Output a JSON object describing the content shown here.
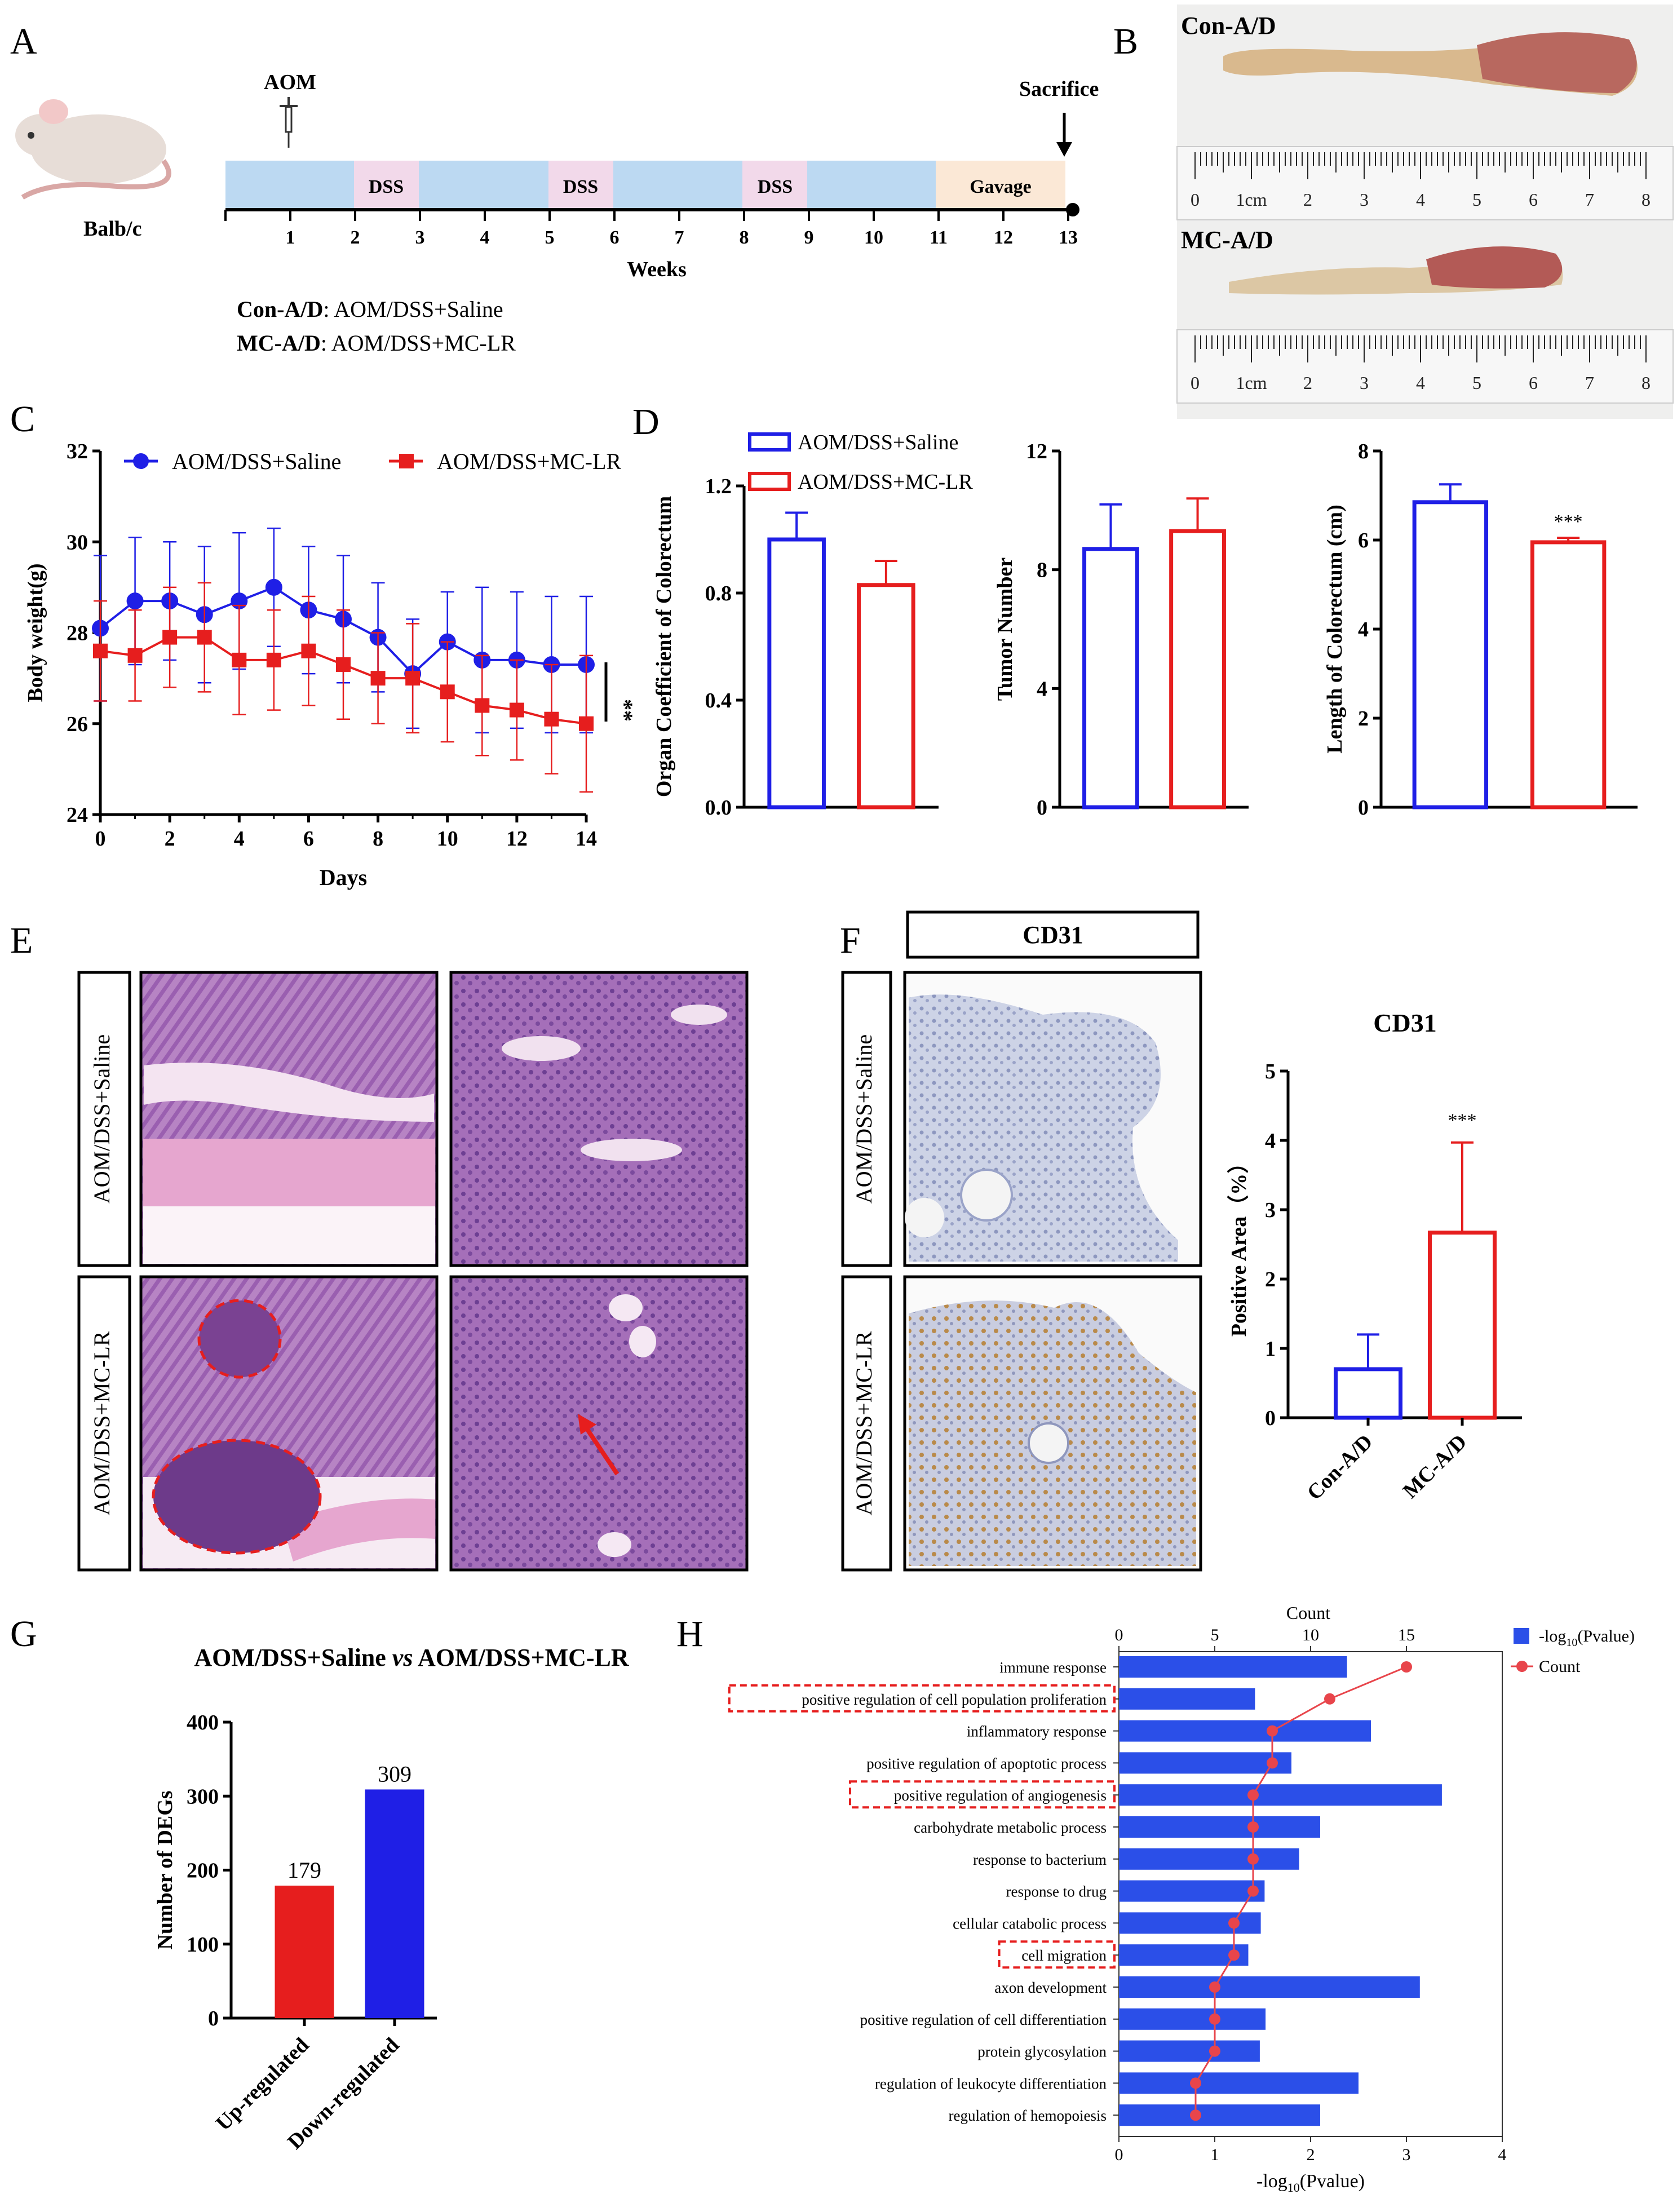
{
  "panel_letters": [
    "A",
    "B",
    "C",
    "D",
    "E",
    "F",
    "G",
    "H"
  ],
  "colors": {
    "blue": "#1f1fe6",
    "red": "#e61e1e",
    "bar_blue": "#2b4fe8",
    "tl_blue": "#bcd9f2",
    "tl_pink": "#f2d9ea",
    "tl_orange": "#fbe8d6"
  },
  "panelA": {
    "animal_label": "Balb/c",
    "aom_label": "AOM",
    "sacrifice_label": "Sacrifice",
    "segments": [
      "DSS",
      "DSS",
      "DSS",
      "Gavage"
    ],
    "week_ticks": [
      "1",
      "2",
      "3",
      "4",
      "5",
      "6",
      "7",
      "8",
      "9",
      "10",
      "11",
      "12",
      "13"
    ],
    "axis_label": "Weeks",
    "groups": [
      {
        "name": "Con-A/D",
        "desc": ": AOM/DSS+Saline"
      },
      {
        "name": "MC-A/D",
        "desc": ": AOM/DSS+MC-LR"
      }
    ]
  },
  "panelB": {
    "labels": [
      "Con-A/D",
      "MC-A/D"
    ],
    "ruler_numbers": [
      "0",
      "1cm",
      "2",
      "3",
      "4",
      "5",
      "6",
      "7",
      "8"
    ]
  },
  "chart_data": [
    {
      "id": "C",
      "type": "line",
      "xlabel": "Days",
      "ylabel": "Body weight(g)",
      "xlim": [
        0,
        14
      ],
      "ylim": [
        24,
        32
      ],
      "xticks": [
        "0",
        "2",
        "4",
        "6",
        "8",
        "10",
        "12",
        "14"
      ],
      "yticks": [
        "24",
        "26",
        "28",
        "30",
        "32"
      ],
      "x": [
        0,
        1,
        2,
        3,
        4,
        5,
        6,
        7,
        8,
        9,
        10,
        11,
        12,
        13,
        14
      ],
      "series": [
        {
          "name": "AOM/DSS+Saline",
          "values": [
            28.1,
            28.7,
            28.7,
            28.4,
            28.7,
            29.0,
            28.5,
            28.3,
            27.9,
            27.1,
            27.8,
            27.4,
            27.4,
            27.3,
            27.3
          ],
          "err": [
            1.6,
            1.4,
            1.3,
            1.5,
            1.5,
            1.3,
            1.4,
            1.4,
            1.2,
            1.2,
            1.1,
            1.6,
            1.5,
            1.5,
            1.5
          ]
        },
        {
          "name": "AOM/DSS+MC-LR",
          "values": [
            27.6,
            27.5,
            27.9,
            27.9,
            27.4,
            27.4,
            27.6,
            27.3,
            27.0,
            27.0,
            26.7,
            26.4,
            26.3,
            26.1,
            26.0
          ],
          "err": [
            1.1,
            1.0,
            1.1,
            1.2,
            1.2,
            1.1,
            1.2,
            1.2,
            1.0,
            1.2,
            1.1,
            1.1,
            1.1,
            1.2,
            1.5
          ]
        }
      ],
      "annotation": "**"
    },
    {
      "id": "D1",
      "type": "bar",
      "ylabel": "Organ Coefficient of Colorectum",
      "ylim": [
        0,
        1.2
      ],
      "yticks": [
        "0.0",
        "0.4",
        "0.8",
        "1.2"
      ],
      "series": [
        {
          "name": "AOM/DSS+Saline",
          "values": [
            1.0
          ],
          "err": [
            0.1
          ]
        },
        {
          "name": "AOM/DSS+MC-LR",
          "values": [
            0.83
          ],
          "err": [
            0.09
          ]
        }
      ]
    },
    {
      "id": "D2",
      "type": "bar",
      "ylabel": "Tumor Number",
      "ylim": [
        0,
        12
      ],
      "yticks": [
        "0",
        "4",
        "8",
        "12"
      ],
      "series": [
        {
          "name": "AOM/DSS+Saline",
          "values": [
            8.7
          ],
          "err": [
            1.5
          ]
        },
        {
          "name": "AOM/DSS+MC-LR",
          "values": [
            9.3
          ],
          "err": [
            1.1
          ]
        }
      ]
    },
    {
      "id": "D3",
      "type": "bar",
      "ylabel": "Length of Colorectum (cm)",
      "ylim": [
        0,
        8
      ],
      "yticks": [
        "0",
        "2",
        "4",
        "6",
        "8"
      ],
      "series": [
        {
          "name": "AOM/DSS+Saline",
          "values": [
            6.85
          ],
          "err": [
            0.4
          ]
        },
        {
          "name": "AOM/DSS+MC-LR",
          "values": [
            5.95
          ],
          "err": [
            0.1
          ]
        }
      ],
      "annotation": "***"
    },
    {
      "id": "F",
      "type": "bar",
      "title": "CD31",
      "ylabel": "Positive Area（%）",
      "ylim": [
        0,
        5
      ],
      "yticks": [
        "0",
        "1",
        "2",
        "3",
        "4",
        "5"
      ],
      "categories": [
        "Con-A/D",
        "MC-A/D"
      ],
      "values": [
        0.7,
        2.67
      ],
      "err": [
        0.5,
        1.3
      ],
      "annotation": "***"
    },
    {
      "id": "G",
      "type": "bar",
      "title": "AOM/DSS+Saline vs AOM/DSS+MC-LR",
      "ylabel": "Number of DEGs",
      "ylim": [
        0,
        400
      ],
      "yticks": [
        "0",
        "100",
        "200",
        "300",
        "400"
      ],
      "categories": [
        "Up-regulated",
        "Down-regulated"
      ],
      "values": [
        179,
        309
      ],
      "data_labels": [
        "179",
        "309"
      ]
    },
    {
      "id": "H",
      "type": "bar",
      "xlabel": "-log10(Pvalue)",
      "x2label": "Count",
      "xlim": [
        0,
        4
      ],
      "xticks": [
        "0",
        "1",
        "2",
        "3",
        "4"
      ],
      "x2lim": [
        0,
        20
      ],
      "x2ticks": [
        "0",
        "5",
        "10",
        "15"
      ],
      "categories": [
        "immune response",
        "positive regulation of cell population proliferation",
        "inflammatory response",
        "positive regulation of apoptotic process",
        "positive regulation of angiogenesis",
        "carbohydrate metabolic process",
        "response to bacterium",
        "response to drug",
        "cellular catabolic process",
        "cell migration",
        "axon development",
        "positive regulation of cell differentiation",
        "protein glycosylation",
        "regulation of leukocyte differentiation",
        "regulation of hemopoiesis"
      ],
      "series": [
        {
          "name": "-log10(Pvalue)",
          "values": [
            2.38,
            1.42,
            2.63,
            1.8,
            3.37,
            2.1,
            1.88,
            1.52,
            1.48,
            1.35,
            3.14,
            1.53,
            1.47,
            2.5,
            2.1
          ]
        },
        {
          "name": "Count",
          "values": [
            15,
            11,
            8,
            8,
            7,
            7,
            7,
            7,
            6,
            6,
            5,
            5,
            5,
            4,
            4
          ]
        }
      ],
      "highlighted": [
        "positive regulation of cell population proliferation",
        "positive regulation of angiogenesis",
        "cell migration"
      ]
    }
  ],
  "panelE": {
    "row_labels": [
      "AOM/DSS+Saline",
      "AOM/DSS+MC-LR"
    ]
  },
  "panelF": {
    "header": "CD31",
    "row_labels": [
      "AOM/DSS+Saline",
      "AOM/DSS+MC-LR"
    ]
  },
  "legend_text": {
    "saline": "AOM/DSS+Saline",
    "mclr": "AOM/DSS+MC-LR",
    "h_bar": "-log",
    "h_sub": "10",
    "h_bar_suffix": "(Pvalue)",
    "h_count": "Count",
    "g_title_a": "AOM/DSS+Saline ",
    "g_title_vs": "vs",
    "g_title_b": " AOM/DSS+MC-LR"
  }
}
